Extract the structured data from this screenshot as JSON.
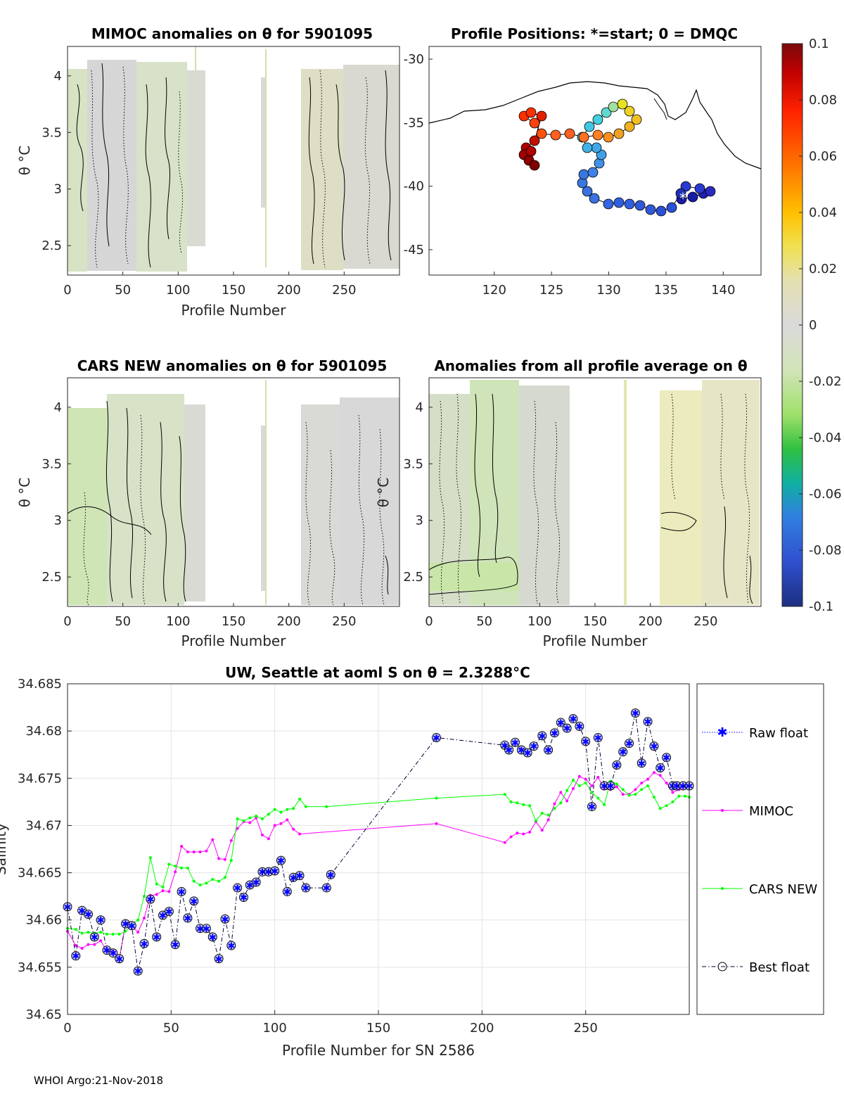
{
  "footer": "WHOI Argo:21-Nov-2018",
  "colorbar": {
    "ticks": [
      "0.1",
      "0.08",
      "0.06",
      "0.04",
      "0.02",
      "0",
      "-0.02",
      "-0.04",
      "-0.06",
      "-0.08",
      "-0.1"
    ],
    "range": [
      -0.1,
      0.1
    ]
  },
  "panels": {
    "mimoc": {
      "title": "MIMOC anomalies on θ  for 5901095",
      "xlabel": "Profile Number",
      "ylabel": "θ °C",
      "xticks": [
        "0",
        "50",
        "100",
        "150",
        "200",
        "250"
      ],
      "yticks": [
        "4",
        "3.5",
        "3",
        "2.5"
      ]
    },
    "positions": {
      "title": "Profile Positions: *=start; 0 = DMQC",
      "xticks": [
        "120",
        "125",
        "130",
        "135",
        "140"
      ],
      "yticks": [
        "-30",
        "-35",
        "-40",
        "-45"
      ]
    },
    "cars": {
      "title": "CARS NEW anomalies on θ for 5901095",
      "xlabel": "Profile Number",
      "ylabel": "θ °C",
      "xticks": [
        "0",
        "50",
        "100",
        "150",
        "200",
        "250"
      ],
      "yticks": [
        "4",
        "3.5",
        "3",
        "2.5"
      ]
    },
    "allavg": {
      "title": "Anomalies from all profile average on θ",
      "xlabel": "Profile Number",
      "ylabel": "θ °C",
      "xticks": [
        "0",
        "50",
        "100",
        "150",
        "200",
        "250"
      ],
      "yticks": [
        "4",
        "3.5",
        "3",
        "2.5"
      ]
    }
  },
  "chart_data": {
    "type": "line",
    "title": "UW, Seattle at aoml S on θ = 2.3288°C",
    "xlabel": "Profile Number for SN 2586",
    "ylabel": "Salinity",
    "xlim": [
      0,
      300
    ],
    "ylim": [
      34.65,
      34.685
    ],
    "xticks": [
      "0",
      "50",
      "100",
      "150",
      "200",
      "250"
    ],
    "yticks": [
      "34.685",
      "34.68",
      "34.675",
      "34.67",
      "34.665",
      "34.66",
      "34.655",
      "34.65"
    ],
    "legend": [
      "Raw float",
      "MIMOC",
      "CARS NEW",
      "Best float"
    ],
    "series": [
      {
        "name": "Best float",
        "color": "#000033",
        "x": [
          0,
          4,
          7,
          10,
          13,
          16,
          19,
          22,
          25,
          28,
          31,
          34,
          37,
          40,
          43,
          46,
          49,
          52,
          55,
          58,
          61,
          64,
          67,
          70,
          73,
          76,
          79,
          82,
          85,
          88,
          91,
          94,
          97,
          100,
          103,
          106,
          109,
          112,
          115,
          125,
          127,
          178,
          211,
          213,
          216,
          219,
          222,
          225,
          229,
          232,
          235,
          238,
          241,
          244,
          247,
          250,
          253,
          256,
          259,
          262,
          265,
          268,
          271,
          274,
          277,
          280,
          283,
          286,
          289,
          292,
          294,
          297,
          300
        ],
        "y": [
          34.6614,
          34.6562,
          34.661,
          34.6606,
          34.6582,
          34.66,
          34.6568,
          34.6565,
          34.6559,
          34.6596,
          34.6594,
          34.6546,
          34.6575,
          34.6622,
          34.6582,
          34.6605,
          34.6609,
          34.6574,
          34.663,
          34.6602,
          34.662,
          34.6591,
          34.6591,
          34.6582,
          34.6559,
          34.6601,
          34.6573,
          34.6634,
          34.6624,
          34.6637,
          34.664,
          34.6651,
          34.6651,
          34.6652,
          34.6663,
          34.663,
          34.6645,
          34.6647,
          34.6634,
          34.6634,
          34.6648,
          34.6793,
          34.6785,
          34.678,
          34.6788,
          34.678,
          34.6777,
          34.6784,
          34.6795,
          34.678,
          34.6798,
          34.6809,
          34.6803,
          34.6813,
          34.6805,
          34.6789,
          34.672,
          34.6793,
          34.6742,
          34.6742,
          34.6764,
          34.6778,
          34.6787,
          34.6819,
          34.6766,
          34.681,
          34.6784,
          34.6761,
          34.6772,
          34.6742,
          34.6742,
          34.6742,
          34.6742
        ]
      },
      {
        "name": "MIMOC",
        "color": "#ff00ff",
        "x": [
          0,
          4,
          7,
          10,
          13,
          16,
          19,
          22,
          25,
          28,
          31,
          34,
          37,
          40,
          43,
          46,
          49,
          52,
          55,
          58,
          61,
          64,
          67,
          70,
          73,
          76,
          79,
          82,
          85,
          88,
          91,
          94,
          97,
          100,
          103,
          106,
          109,
          112,
          178,
          211,
          214,
          217,
          220,
          223,
          226,
          229,
          232,
          235,
          238,
          241,
          244,
          247,
          250,
          253,
          256,
          259,
          262,
          265,
          268,
          271,
          274,
          277,
          280,
          283,
          286,
          289,
          292,
          295,
          298,
          300
        ],
        "y": [
          34.6588,
          34.6573,
          34.657,
          34.6574,
          34.6574,
          34.6578,
          34.6567,
          34.6567,
          34.6559,
          34.6596,
          34.6594,
          34.6587,
          34.6602,
          34.6626,
          34.6627,
          34.6631,
          34.663,
          34.6651,
          34.6678,
          34.6672,
          34.6672,
          34.6672,
          34.6673,
          34.6685,
          34.6665,
          34.6664,
          34.6684,
          34.6697,
          34.6704,
          34.6703,
          34.6708,
          34.669,
          34.6686,
          34.67,
          34.6702,
          34.6706,
          34.6696,
          34.6691,
          34.6702,
          34.6682,
          34.6688,
          34.6692,
          34.6691,
          34.6693,
          34.6704,
          34.6695,
          34.6706,
          34.6723,
          34.6735,
          34.6726,
          34.6739,
          34.6752,
          34.6749,
          34.6742,
          34.6751,
          34.6739,
          34.6738,
          34.6741,
          34.6733,
          34.6733,
          34.6738,
          34.6745,
          34.6749,
          34.6756,
          34.6753,
          34.6745,
          34.6735,
          34.6738,
          34.6742,
          34.6742
        ]
      },
      {
        "name": "CARS NEW",
        "color": "#00ff00",
        "x": [
          0,
          4,
          7,
          10,
          13,
          16,
          19,
          22,
          25,
          28,
          31,
          34,
          37,
          40,
          43,
          46,
          49,
          52,
          55,
          58,
          61,
          64,
          67,
          70,
          73,
          76,
          79,
          82,
          85,
          88,
          91,
          94,
          97,
          100,
          103,
          106,
          109,
          112,
          115,
          125,
          178,
          211,
          214,
          217,
          220,
          223,
          226,
          229,
          232,
          235,
          238,
          241,
          244,
          247,
          250,
          253,
          256,
          259,
          262,
          265,
          268,
          271,
          274,
          277,
          280,
          283,
          286,
          289,
          292,
          295,
          298,
          300
        ],
        "y": [
          34.6591,
          34.659,
          34.6586,
          34.6587,
          34.6586,
          34.6587,
          34.6585,
          34.6585,
          34.6585,
          34.6588,
          34.6595,
          34.66,
          34.6625,
          34.6666,
          34.6638,
          34.6635,
          34.6659,
          34.6657,
          34.6655,
          34.6655,
          34.6641,
          34.6637,
          34.6639,
          34.6643,
          34.6641,
          34.6645,
          34.6663,
          34.6707,
          34.6705,
          34.6708,
          34.671,
          34.6707,
          34.6712,
          34.6717,
          34.6714,
          34.6717,
          34.6718,
          34.6728,
          34.672,
          34.672,
          34.6729,
          34.6733,
          34.6725,
          34.6724,
          34.6722,
          34.6721,
          34.6705,
          34.6713,
          34.6711,
          34.6718,
          34.6724,
          34.6737,
          34.6748,
          34.6742,
          34.6745,
          34.6735,
          34.6729,
          34.6722,
          34.6747,
          34.6744,
          34.6738,
          34.6732,
          34.6733,
          34.6738,
          34.6742,
          34.673,
          34.6718,
          34.6721,
          34.6725,
          34.6731,
          34.6731,
          34.673
        ]
      }
    ]
  }
}
